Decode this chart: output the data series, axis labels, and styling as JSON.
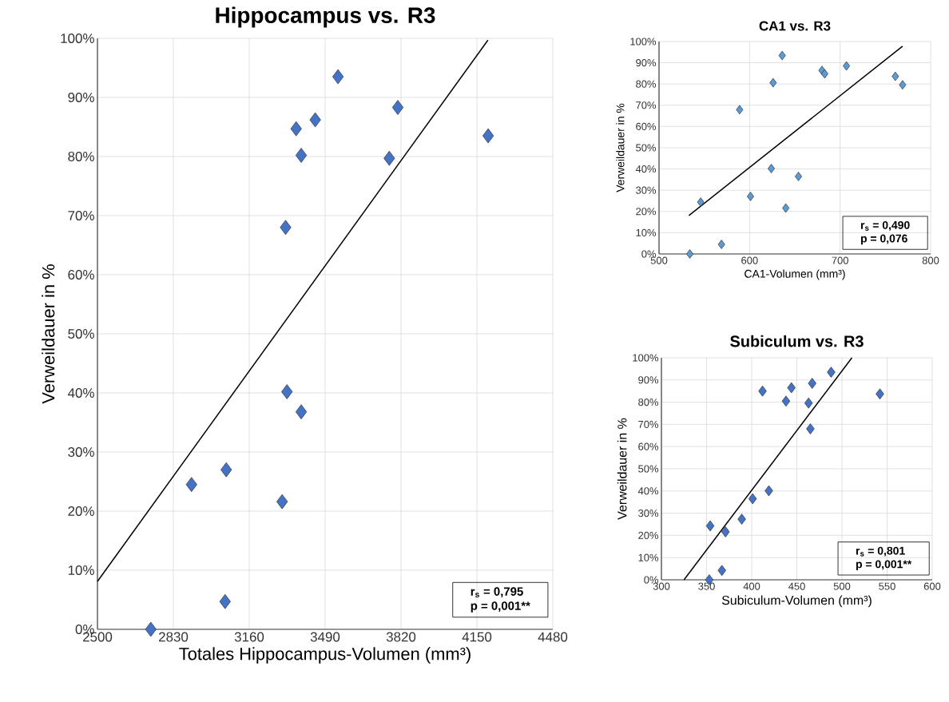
{
  "chart_data": [
    {
      "type": "scatter",
      "title": "Hippocampus vs. R3",
      "xlabel": "Totales Hippocampus-Volumen (mm³)",
      "ylabel": "Verweildauer in %",
      "xlim": [
        2500,
        4480
      ],
      "xticks": [
        2500,
        2830,
        3160,
        3490,
        3820,
        4150,
        4480
      ],
      "ylim": [
        0,
        100
      ],
      "yticks": [
        {
          "value": 0,
          "label": "0%"
        },
        {
          "value": 10,
          "label": "10%"
        },
        {
          "value": 20,
          "label": "20%"
        },
        {
          "value": 30,
          "label": "30%"
        },
        {
          "value": 40,
          "label": "40%"
        },
        {
          "value": 50,
          "label": "50%"
        },
        {
          "value": 60,
          "label": "60%"
        },
        {
          "value": 70,
          "label": "70%"
        },
        {
          "value": 80,
          "label": "80%"
        },
        {
          "value": 90,
          "label": "90%"
        },
        {
          "value": 100,
          "label": "100%"
        }
      ],
      "grid": true,
      "series": [
        {
          "marker": "diamond",
          "color": "#4472c4",
          "x": [
            2732,
            3055,
            2909,
            3060,
            3303,
            3324,
            3386,
            3318,
            3386,
            3364,
            3447,
            3546,
            3769,
            3806,
            4199
          ],
          "values": [
            0,
            4.7,
            24.5,
            27.0,
            21.6,
            40.2,
            36.8,
            68.0,
            80.2,
            84.7,
            86.2,
            93.5,
            79.7,
            88.3,
            83.5
          ]
        },
        {
          "type": "line",
          "color": "#000000",
          "x": [
            2500,
            4198
          ],
          "values": [
            8.1,
            99.7
          ]
        }
      ],
      "annotations": [
        "r$_{s}$ = 0,795",
        "p = 0,001**"
      ]
    },
    {
      "type": "scatter",
      "title": "CA1 vs. R3",
      "xlabel": "CA1-Volumen  (mm³)",
      "ylabel": "Verweildauer  in %",
      "xlim": [
        500,
        800
      ],
      "xticks": [
        500,
        600,
        700,
        800
      ],
      "ylim": [
        0,
        100
      ],
      "yticks": [
        {
          "value": 0,
          "label": "0%"
        },
        {
          "value": 10,
          "label": "10%"
        },
        {
          "value": 20,
          "label": "20%"
        },
        {
          "value": 30,
          "label": "30%"
        },
        {
          "value": 40,
          "label": "40%"
        },
        {
          "value": 50,
          "label": "50%"
        },
        {
          "value": 60,
          "label": "60%"
        },
        {
          "value": 70,
          "label": "70%"
        },
        {
          "value": 80,
          "label": "80%"
        },
        {
          "value": 90,
          "label": "90%"
        },
        {
          "value": 100,
          "label": "100%"
        }
      ],
      "grid": true,
      "series": [
        {
          "marker": "diamond",
          "color": "#5b9bd5",
          "x": [
            534,
            569,
            546,
            601,
            640,
            624,
            654,
            589,
            626,
            636,
            680,
            683,
            707,
            761,
            769
          ],
          "values": [
            0,
            4.5,
            24.4,
            27.1,
            21.6,
            40.2,
            36.5,
            67.9,
            80.6,
            93.4,
            86.4,
            84.8,
            88.5,
            83.6,
            79.6
          ]
        },
        {
          "type": "line",
          "color": "#000000",
          "x": [
            533,
            769
          ],
          "values": [
            18.1,
            97.8
          ]
        }
      ],
      "annotations": [
        "r$_{s}$ = 0,490",
        "p = 0,076"
      ]
    },
    {
      "type": "scatter",
      "title": "Subiculum vs. R3",
      "xlabel": "Subiculum-Volumen (mm³)",
      "ylabel": "Verweildauer in  %",
      "xlim": [
        300,
        600
      ],
      "xticks": [
        300,
        350,
        400,
        450,
        500,
        550,
        600
      ],
      "ylim": [
        0,
        100
      ],
      "yticks": [
        {
          "value": 0,
          "label": "0%"
        },
        {
          "value": 10,
          "label": "10%"
        },
        {
          "value": 20,
          "label": "20%"
        },
        {
          "value": 30,
          "label": "30%"
        },
        {
          "value": 40,
          "label": "40%"
        },
        {
          "value": 50,
          "label": "50%"
        },
        {
          "value": 60,
          "label": "60%"
        },
        {
          "value": 70,
          "label": "70%"
        },
        {
          "value": 80,
          "label": "80%"
        },
        {
          "value": 90,
          "label": "90%"
        },
        {
          "value": 100,
          "label": "100%"
        }
      ],
      "grid": true,
      "series": [
        {
          "marker": "diamond",
          "color": "#4472c4",
          "x": [
            353,
            367,
            354,
            371,
            389,
            401,
            419,
            412,
            438,
            444,
            463,
            465,
            467,
            488,
            542
          ],
          "values": [
            0,
            4.2,
            24.3,
            21.6,
            27.3,
            36.5,
            40.1,
            85.0,
            80.5,
            86.5,
            79.6,
            68.0,
            88.5,
            93.5,
            83.7
          ]
        },
        {
          "type": "line",
          "color": "#000000",
          "x": [
            325,
            511
          ],
          "values": [
            0,
            100
          ]
        }
      ],
      "annotations": [
        "r$_{s}$ = 0,801",
        "p = 0,001**"
      ]
    }
  ]
}
